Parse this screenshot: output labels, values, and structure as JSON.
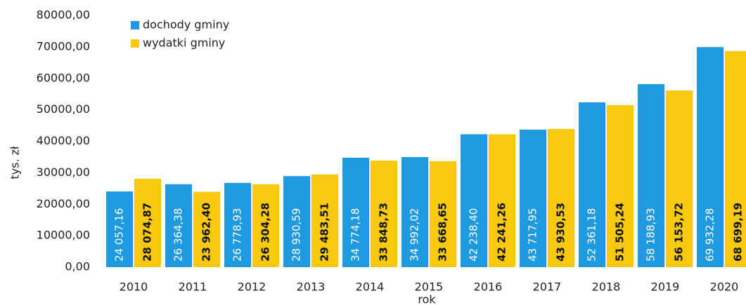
{
  "chart_data": {
    "type": "bar",
    "categories": [
      "2010",
      "2011",
      "2012",
      "2013",
      "2014",
      "2015",
      "2016",
      "2017",
      "2018",
      "2019",
      "2020"
    ],
    "series": [
      {
        "name": "dochody gminy",
        "color": "#1e9be0",
        "values": [
          24057.16,
          26364.38,
          26778.93,
          28930.59,
          34774.18,
          34992.02,
          42238.4,
          43717.95,
          52361.18,
          58188.93,
          69932.28
        ],
        "value_labels": [
          "24 057,16",
          "26 364,38",
          "26 778,93",
          "28 930,59",
          "34 774,18",
          "34 992,02",
          "42 238,40",
          "43 717,95",
          "52 361,18",
          "58 188,93",
          "69 932,28"
        ]
      },
      {
        "name": "wydatki gminy",
        "color": "#f9c90f",
        "values": [
          28074.87,
          23962.4,
          26304.28,
          29483.51,
          33848.73,
          33668.65,
          42241.26,
          43930.53,
          51505.24,
          56153.72,
          68699.19
        ],
        "value_labels": [
          "28 074,87",
          "23 962,40",
          "26 304,28",
          "29 483,51",
          "33 848,73",
          "33 668,65",
          "42 241,26",
          "43 930,53",
          "51 505,24",
          "56 153,72",
          "68 699,19"
        ]
      }
    ],
    "ylabel": "tys. zł",
    "xlabel": "rok",
    "ylim": [
      0,
      80000
    ],
    "yticks": [
      {
        "value": 0,
        "label": "0,00"
      },
      {
        "value": 10000,
        "label": "10000,00"
      },
      {
        "value": 20000,
        "label": "20000,00"
      },
      {
        "value": 30000,
        "label": "30000,00"
      },
      {
        "value": 40000,
        "label": "40000,00"
      },
      {
        "value": 50000,
        "label": "50000,00"
      },
      {
        "value": 60000,
        "label": "60000,00"
      },
      {
        "value": 70000,
        "label": "70000,00"
      },
      {
        "value": 80000,
        "label": "80000,00"
      }
    ],
    "grid": false,
    "legend": "top-left"
  }
}
